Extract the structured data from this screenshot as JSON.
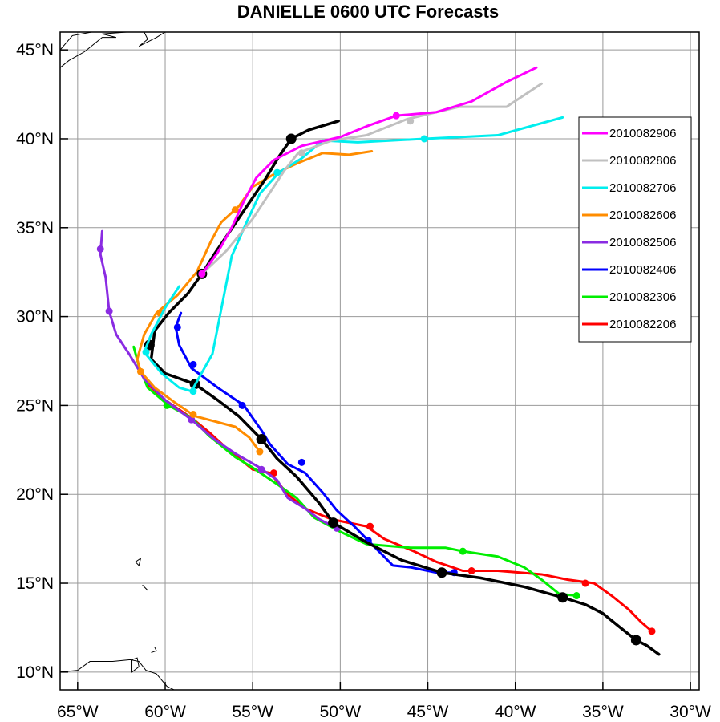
{
  "chart_data": {
    "type": "line",
    "title": "DANIELLE 0600 UTC Forecasts",
    "x_label": "",
    "y_label": "",
    "xlim": [
      -66,
      -29.5
    ],
    "ylim": [
      9,
      46
    ],
    "grid": true,
    "legend_placement": "right",
    "x_ticks": [
      {
        "value": -65,
        "label": "65°W"
      },
      {
        "value": -60,
        "label": "60°W"
      },
      {
        "value": -55,
        "label": "55°W"
      },
      {
        "value": -50,
        "label": "50°W"
      },
      {
        "value": -45,
        "label": "45°W"
      },
      {
        "value": -40,
        "label": "40°W"
      },
      {
        "value": -35,
        "label": "35°W"
      },
      {
        "value": -30,
        "label": "30°W"
      }
    ],
    "y_ticks": [
      {
        "value": 10,
        "label": "10°N"
      },
      {
        "value": 15,
        "label": "15°N"
      },
      {
        "value": 20,
        "label": "20°N"
      },
      {
        "value": 25,
        "label": "25°N"
      },
      {
        "value": 30,
        "label": "30°N"
      },
      {
        "value": 35,
        "label": "35°N"
      },
      {
        "value": 40,
        "label": "40°N"
      },
      {
        "value": 45,
        "label": "45°N"
      }
    ],
    "series": [
      {
        "name": "2010082906",
        "color": "#ff00ff",
        "points": [
          [
            -57.9,
            32.4
          ],
          [
            -57.0,
            33.6
          ],
          [
            -56.2,
            35.0
          ],
          [
            -55.5,
            36.5
          ],
          [
            -54.8,
            37.8
          ],
          [
            -53.8,
            38.8
          ],
          [
            -53.0,
            39.2
          ],
          [
            -52.2,
            39.6
          ],
          [
            -50.0,
            40.1
          ],
          [
            -48.5,
            40.7
          ],
          [
            -46.8,
            41.3
          ],
          [
            -44.5,
            41.5
          ],
          [
            -42.5,
            42.1
          ],
          [
            -40.5,
            43.2
          ],
          [
            -38.8,
            44.0
          ]
        ],
        "markers": [
          [
            -57.9,
            32.4
          ],
          [
            -46.8,
            41.3
          ]
        ]
      },
      {
        "name": "2010082806",
        "color": "#c0c0c0",
        "points": [
          [
            -57.9,
            32.4
          ],
          [
            -56.5,
            33.7
          ],
          [
            -55.0,
            35.5
          ],
          [
            -54.0,
            37.0
          ],
          [
            -53.2,
            38.2
          ],
          [
            -52.4,
            39.2
          ],
          [
            -50.5,
            39.9
          ],
          [
            -48.5,
            40.2
          ],
          [
            -46.2,
            41.1
          ],
          [
            -43.2,
            41.8
          ],
          [
            -40.5,
            41.8
          ],
          [
            -38.5,
            43.1
          ]
        ],
        "markers": [
          [
            -57.9,
            32.4
          ],
          [
            -52.2,
            39.2
          ],
          [
            -46.0,
            41.0
          ]
        ]
      },
      {
        "name": "2010082706",
        "color": "#00eeee",
        "points": [
          [
            -59.2,
            31.7
          ],
          [
            -60.0,
            30.5
          ],
          [
            -60.8,
            29.0
          ],
          [
            -61.2,
            28.0
          ],
          [
            -60.2,
            26.8
          ],
          [
            -59.2,
            26.0
          ],
          [
            -58.5,
            25.8
          ],
          [
            -57.3,
            27.9
          ],
          [
            -56.2,
            33.4
          ],
          [
            -55.4,
            35.2
          ],
          [
            -54.6,
            36.9
          ],
          [
            -53.5,
            38.1
          ],
          [
            -52.2,
            38.9
          ],
          [
            -51.0,
            39.9
          ],
          [
            -49.0,
            39.8
          ],
          [
            -45.2,
            40.0
          ],
          [
            -41.0,
            40.2
          ],
          [
            -37.3,
            41.2
          ]
        ],
        "markers": [
          [
            -61.1,
            28.0
          ],
          [
            -58.4,
            25.8
          ],
          [
            -53.6,
            38.1
          ],
          [
            -45.2,
            40.0
          ]
        ]
      },
      {
        "name": "2010082606",
        "color": "#ff8c00",
        "points": [
          [
            -54.6,
            22.4
          ],
          [
            -55.2,
            23.2
          ],
          [
            -56.0,
            23.8
          ],
          [
            -58.3,
            24.4
          ],
          [
            -59.5,
            25.2
          ],
          [
            -60.6,
            26.0
          ],
          [
            -61.4,
            26.9
          ],
          [
            -61.6,
            27.6
          ],
          [
            -61.2,
            29.0
          ],
          [
            -60.5,
            30.2
          ],
          [
            -59.3,
            31.2
          ],
          [
            -58.2,
            32.5
          ],
          [
            -57.4,
            34.2
          ],
          [
            -56.8,
            35.3
          ],
          [
            -55.8,
            36.2
          ],
          [
            -55.0,
            37.3
          ],
          [
            -53.8,
            38.0
          ],
          [
            -52.5,
            38.6
          ],
          [
            -51.0,
            39.2
          ],
          [
            -49.5,
            39.1
          ],
          [
            -48.2,
            39.3
          ]
        ],
        "markers": [
          [
            -54.6,
            22.4
          ],
          [
            -58.4,
            24.5
          ],
          [
            -61.4,
            26.9
          ],
          [
            -60.3,
            30.2
          ],
          [
            -56.0,
            36.0
          ]
        ]
      },
      {
        "name": "2010082506",
        "color": "#8a2be2",
        "points": [
          [
            -50.2,
            18.1
          ],
          [
            -51.2,
            18.6
          ],
          [
            -52.0,
            19.2
          ],
          [
            -53.0,
            19.8
          ],
          [
            -53.6,
            20.8
          ],
          [
            -54.6,
            21.5
          ],
          [
            -56.0,
            22.3
          ],
          [
            -57.2,
            23.1
          ],
          [
            -58.5,
            24.2
          ],
          [
            -60.0,
            25.3
          ],
          [
            -61.2,
            26.5
          ],
          [
            -62.0,
            27.8
          ],
          [
            -62.8,
            29.0
          ],
          [
            -63.2,
            30.3
          ],
          [
            -63.4,
            32.2
          ],
          [
            -63.7,
            33.5
          ],
          [
            -63.6,
            34.8
          ]
        ],
        "markers": [
          [
            -50.2,
            18.1
          ],
          [
            -54.5,
            21.4
          ],
          [
            -58.5,
            24.2
          ],
          [
            -63.2,
            30.3
          ],
          [
            -63.7,
            33.8
          ]
        ]
      },
      {
        "name": "2010082406",
        "color": "#0000ff",
        "points": [
          [
            -43.5,
            15.6
          ],
          [
            -44.5,
            15.6
          ],
          [
            -46.0,
            15.9
          ],
          [
            -47.0,
            16.0
          ],
          [
            -48.2,
            17.2
          ],
          [
            -49.2,
            18.2
          ],
          [
            -50.2,
            19.1
          ],
          [
            -51.0,
            20.1
          ],
          [
            -52.0,
            21.2
          ],
          [
            -53.0,
            21.7
          ],
          [
            -54.0,
            22.8
          ],
          [
            -54.5,
            23.6
          ],
          [
            -55.5,
            25.0
          ],
          [
            -57.0,
            26.0
          ],
          [
            -58.5,
            27.1
          ],
          [
            -59.2,
            28.4
          ],
          [
            -59.4,
            29.4
          ],
          [
            -59.1,
            30.2
          ]
        ],
        "markers": [
          [
            -43.5,
            15.6
          ],
          [
            -48.4,
            17.4
          ],
          [
            -52.2,
            21.8
          ],
          [
            -55.6,
            25.0
          ],
          [
            -58.4,
            27.3
          ],
          [
            -59.3,
            29.4
          ]
        ]
      },
      {
        "name": "2010082306",
        "color": "#00ee00",
        "points": [
          [
            -36.5,
            14.3
          ],
          [
            -37.5,
            14.4
          ],
          [
            -38.5,
            15.2
          ],
          [
            -39.5,
            15.9
          ],
          [
            -41.0,
            16.5
          ],
          [
            -43.0,
            16.8
          ],
          [
            -44.0,
            17.0
          ],
          [
            -46.0,
            17.0
          ],
          [
            -48.5,
            17.2
          ],
          [
            -50.0,
            17.9
          ],
          [
            -51.5,
            18.7
          ],
          [
            -52.5,
            19.8
          ],
          [
            -53.5,
            20.5
          ],
          [
            -55.0,
            21.5
          ],
          [
            -56.0,
            22.1
          ],
          [
            -57.5,
            23.3
          ],
          [
            -58.5,
            24.3
          ],
          [
            -59.8,
            25.0
          ],
          [
            -61.0,
            26.0
          ],
          [
            -61.5,
            27.2
          ],
          [
            -61.8,
            28.3
          ]
        ],
        "markers": [
          [
            -36.5,
            14.3
          ],
          [
            -43.0,
            16.8
          ],
          [
            -59.9,
            25.0
          ]
        ]
      },
      {
        "name": "2010082206",
        "color": "#ff0000",
        "points": [
          [
            -32.2,
            12.3
          ],
          [
            -32.8,
            12.8
          ],
          [
            -33.5,
            13.5
          ],
          [
            -34.5,
            14.3
          ],
          [
            -35.5,
            15.0
          ],
          [
            -37.0,
            15.2
          ],
          [
            -38.5,
            15.5
          ],
          [
            -41.0,
            15.7
          ],
          [
            -43.0,
            15.7
          ],
          [
            -44.5,
            16.2
          ],
          [
            -45.8,
            16.8
          ],
          [
            -47.5,
            17.5
          ],
          [
            -48.5,
            18.2
          ],
          [
            -50.5,
            18.6
          ],
          [
            -52.0,
            19.2
          ],
          [
            -53.0,
            20.0
          ],
          [
            -54.0,
            21.2
          ],
          [
            -55.0,
            21.4
          ],
          [
            -56.5,
            22.6
          ],
          [
            -57.5,
            23.5
          ],
          [
            -58.5,
            24.3
          ],
          [
            -60.0,
            25.3
          ],
          [
            -61.0,
            26.2
          ],
          [
            -61.5,
            27.0
          ]
        ],
        "markers": [
          [
            -32.2,
            12.3
          ],
          [
            -36.0,
            15.0
          ],
          [
            -42.5,
            15.7
          ],
          [
            -48.3,
            18.2
          ],
          [
            -53.8,
            21.2
          ]
        ]
      },
      {
        "name": "",
        "color": "#000000",
        "is_official": true,
        "points": [
          [
            -31.8,
            11.0
          ],
          [
            -32.5,
            11.5
          ],
          [
            -33.1,
            11.8
          ],
          [
            -34.0,
            12.5
          ],
          [
            -35.0,
            13.3
          ],
          [
            -36.0,
            13.8
          ],
          [
            -37.3,
            14.2
          ],
          [
            -39.5,
            14.8
          ],
          [
            -42.0,
            15.3
          ],
          [
            -44.2,
            15.6
          ],
          [
            -46.5,
            16.3
          ],
          [
            -48.5,
            17.3
          ],
          [
            -50.4,
            18.4
          ],
          [
            -51.2,
            19.5
          ],
          [
            -52.5,
            21.0
          ],
          [
            -53.6,
            22.0
          ],
          [
            -54.5,
            23.1
          ],
          [
            -55.8,
            24.4
          ],
          [
            -57.0,
            25.3
          ],
          [
            -58.3,
            26.2
          ],
          [
            -60.0,
            26.8
          ],
          [
            -60.8,
            27.6
          ],
          [
            -60.7,
            28.4
          ],
          [
            -60.6,
            29.2
          ],
          [
            -59.8,
            30.2
          ],
          [
            -58.7,
            31.3
          ],
          [
            -57.9,
            32.4
          ],
          [
            -57.2,
            33.5
          ],
          [
            -56.3,
            34.8
          ],
          [
            -55.2,
            36.4
          ],
          [
            -54.3,
            37.7
          ],
          [
            -53.5,
            39.0
          ],
          [
            -52.8,
            40.0
          ],
          [
            -51.8,
            40.5
          ],
          [
            -50.1,
            41.0
          ]
        ],
        "markers": [
          [
            -33.1,
            11.8
          ],
          [
            -37.3,
            14.2
          ],
          [
            -44.2,
            15.6
          ],
          [
            -50.4,
            18.4
          ],
          [
            -54.5,
            23.1
          ],
          [
            -58.3,
            26.2
          ],
          [
            -60.9,
            28.4
          ],
          [
            -57.9,
            32.4
          ],
          [
            -52.8,
            40.0
          ]
        ]
      }
    ],
    "land_outlines": [
      [
        [
          -66,
          45.0
        ],
        [
          -65.3,
          45.8
        ],
        [
          -64.2,
          46.0
        ]
      ],
      [
        [
          -66,
          44.0
        ],
        [
          -65.5,
          44.4
        ],
        [
          -64.6,
          44.9
        ],
        [
          -63.6,
          45.7
        ],
        [
          -62.8,
          45.7
        ],
        [
          -63.6,
          45.9
        ],
        [
          -62.2,
          46.0
        ]
      ],
      [
        [
          -61.2,
          46.0
        ],
        [
          -61.0,
          45.6
        ],
        [
          -61.5,
          45.2
        ],
        [
          -60.5,
          45.7
        ],
        [
          -60.0,
          46.0
        ]
      ],
      [
        [
          -66,
          10.0
        ],
        [
          -65.0,
          10.1
        ],
        [
          -64.3,
          10.6
        ],
        [
          -63.0,
          10.6
        ],
        [
          -62.0,
          10.7
        ],
        [
          -61.5,
          10.6
        ],
        [
          -61.1,
          10.1
        ],
        [
          -60.5,
          9.9
        ],
        [
          -59.9,
          9.2
        ],
        [
          -59.5,
          9.0
        ]
      ],
      [
        [
          -61.9,
          10.7
        ],
        [
          -61.6,
          10.8
        ],
        [
          -61.5,
          10.3
        ],
        [
          -61.9,
          10.0
        ],
        [
          -61.9,
          10.7
        ]
      ],
      [
        [
          -60.8,
          11.1
        ],
        [
          -60.5,
          11.2
        ],
        [
          -60.6,
          11.4
        ]
      ],
      [
        [
          -61.7,
          16.2
        ],
        [
          -61.4,
          16.4
        ],
        [
          -61.5,
          16.0
        ],
        [
          -61.7,
          16.2
        ]
      ],
      [
        [
          -61.3,
          14.9
        ],
        [
          -61.0,
          14.6
        ]
      ]
    ]
  },
  "legend": {
    "items": [
      {
        "label": "2010082906",
        "color": "#ff00ff"
      },
      {
        "label": "2010082806",
        "color": "#c0c0c0"
      },
      {
        "label": "2010082706",
        "color": "#00eeee"
      },
      {
        "label": "2010082606",
        "color": "#ff8c00"
      },
      {
        "label": "2010082506",
        "color": "#8a2be2"
      },
      {
        "label": "2010082406",
        "color": "#0000ff"
      },
      {
        "label": "2010082306",
        "color": "#00ee00"
      },
      {
        "label": "2010082206",
        "color": "#ff0000"
      }
    ]
  }
}
